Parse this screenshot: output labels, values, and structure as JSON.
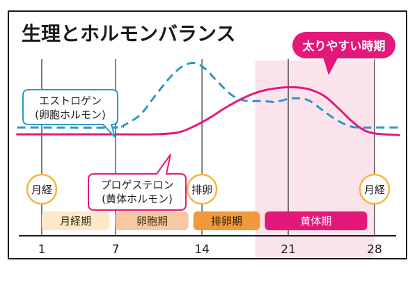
{
  "chart_data": {
    "type": "line",
    "title": "生理とホルモンバランス",
    "highlight": {
      "label": "太りやすい時期",
      "x_range": [
        19,
        28
      ],
      "color": "#e4187a"
    },
    "x_ticks": [
      "1",
      "7",
      "14",
      "21",
      "28"
    ],
    "x_tick_values": [
      1,
      7,
      14,
      21,
      28
    ],
    "xlim": [
      1,
      28
    ],
    "series": [
      {
        "name": "エストロゲン（卵胞ホルモン）",
        "label_line1": "エストロゲン",
        "label_line2": "(卵胞ホルモン)",
        "style": "dashed",
        "color": "#2b98c8",
        "x": [
          -1,
          1,
          7,
          7.6,
          9,
          10.2,
          11.5,
          12.6,
          13.5,
          14.3,
          15.3,
          16.5,
          17.6,
          18.8,
          20,
          21.3,
          22.6,
          23.8,
          25,
          26.1,
          27,
          28,
          30
        ],
        "y": [
          0.25,
          0.25,
          0.25,
          0.27,
          0.4,
          0.62,
          0.85,
          0.98,
          1.0,
          0.93,
          0.78,
          0.62,
          0.56,
          0.56,
          0.55,
          0.59,
          0.57,
          0.45,
          0.33,
          0.26,
          0.25,
          0.25,
          0.25
        ]
      },
      {
        "name": "プロゲステロン（黄体ホルモン）",
        "label_line1": "プロゲステロン",
        "label_line2": "(黄体ホルモン)",
        "style": "solid",
        "color": "#e4187a",
        "x": [
          -1,
          1,
          7,
          10,
          12,
          13.3,
          14.6,
          15.9,
          17.3,
          18.7,
          20.1,
          21.3,
          22.6,
          23.9,
          25.1,
          26.1,
          27,
          28,
          30
        ],
        "y": [
          0.17,
          0.17,
          0.17,
          0.17,
          0.19,
          0.26,
          0.36,
          0.48,
          0.59,
          0.67,
          0.71,
          0.72,
          0.7,
          0.62,
          0.47,
          0.33,
          0.23,
          0.18,
          0.16
        ]
      }
    ],
    "markers": [
      {
        "x": 1,
        "label": "月経"
      },
      {
        "x": 14,
        "label": "排卵"
      },
      {
        "x": 28,
        "label": "月経"
      }
    ],
    "phases": [
      {
        "label": "月経期",
        "start": 1,
        "end": 6.5,
        "color": "#fde9c8",
        "text_color": "#3a2a12"
      },
      {
        "label": "卵胞期",
        "start": 7,
        "end": 12.9,
        "color": "#f7c9a2",
        "text_color": "#3a2a12"
      },
      {
        "label": "排卵期",
        "start": 13.3,
        "end": 18.7,
        "color": "#ef9a3c",
        "text_color": "#2a1a08"
      },
      {
        "label": "黄体期",
        "start": 19.1,
        "end": 27.4,
        "color": "#e4187a",
        "text_color": "#ffffff"
      }
    ]
  }
}
